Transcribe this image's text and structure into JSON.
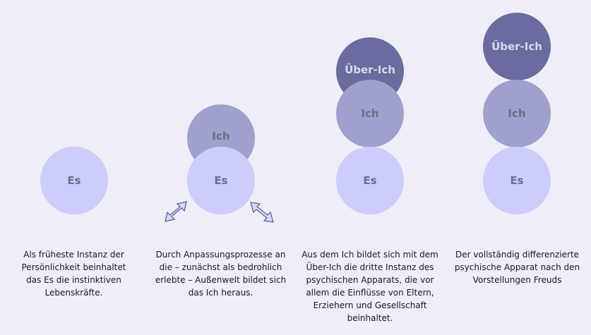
{
  "stages": [
    {
      "circles": {
        "es": "Es"
      },
      "caption": "Als früheste Instanz der Persönlichkeit beinhaltet das Es die instinktiven Lebenskräfte."
    },
    {
      "circles": {
        "ich": "Ich",
        "es": "Es"
      },
      "caption": "Durch Anpassungsprozesse an die – zunächst als bedrohlich erlebte – Außenwelt bildet sich das Ich heraus."
    },
    {
      "circles": {
        "ueber": "Über-Ich",
        "ich": "Ich",
        "es": "Es"
      },
      "caption": "Aus dem Ich bildet sich mit dem Über-Ich die dritte Instanz des psychischen Apparats, die vor allem die Einflüsse von Eltern, Erziehern und Gesellschaft beinhaltet."
    },
    {
      "circles": {
        "ueber": "Über-Ich",
        "ich": "Ich",
        "es": "Es"
      },
      "caption": "Der vollständig differenzierte psychische Apparat nach den Vorstellungen Freuds"
    }
  ],
  "colors": {
    "es": "#cccdfb",
    "ich": "#9fa0cc",
    "ueber": "#6a6b9e",
    "background": "#eeeef8"
  },
  "icons": [
    "double-arrow-icon-left",
    "double-arrow-icon-right"
  ]
}
